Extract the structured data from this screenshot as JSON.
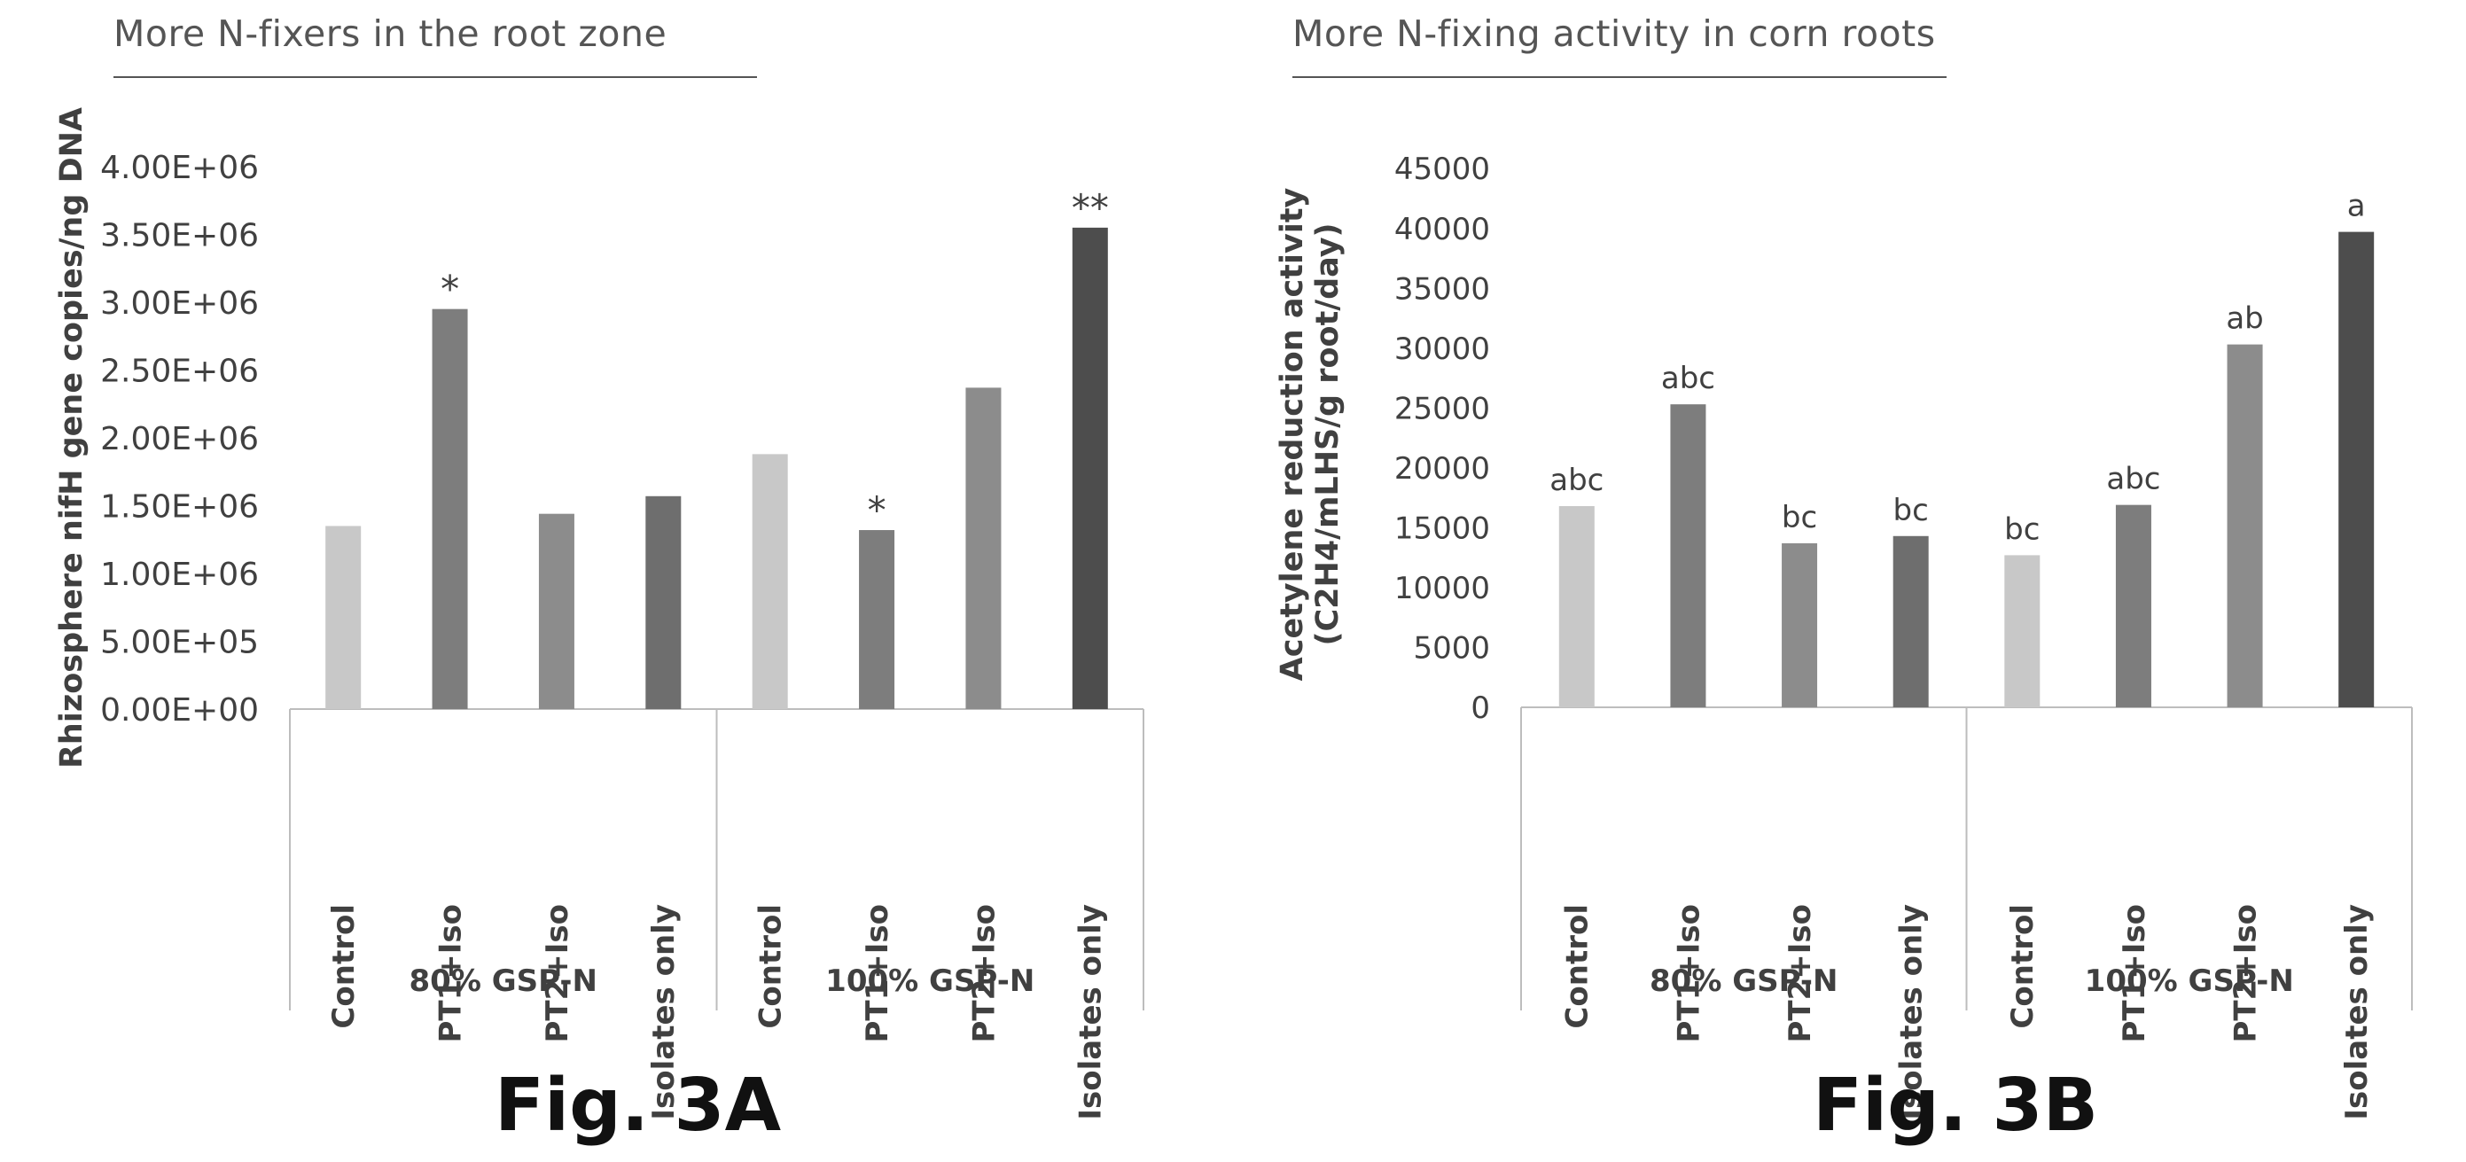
{
  "figures": [
    {
      "id": "a",
      "header": "More N-fixers in the root zone",
      "caption": "Fig. 3A"
    },
    {
      "id": "b",
      "header": "More N-fixing activity in corn roots",
      "caption": "Fig. 3B"
    }
  ],
  "chart_data": [
    {
      "type": "bar",
      "title": "More N-fixers in the root zone",
      "ylabel": "Rhizosphere nifH gene copies/ng DNA",
      "xlabel": "",
      "ylim": [
        0,
        4000000
      ],
      "yticks": [
        "0.00E+00",
        "5.00E+05",
        "1.00E+06",
        "1.50E+06",
        "2.00E+06",
        "2.50E+06",
        "3.00E+06",
        "3.50E+06",
        "4.00E+06"
      ],
      "groups": [
        "80% GSP-N",
        "100% GSP-N"
      ],
      "categories": [
        "Control",
        "PT1+Iso",
        "PT2+Iso",
        "Isolates only",
        "Control",
        "PT1+Iso",
        "PT2+Iso",
        "Isolates only"
      ],
      "values": [
        1350000,
        2950000,
        1440000,
        1570000,
        1880000,
        1320000,
        2370000,
        3550000
      ],
      "annotations": [
        "",
        "*",
        "",
        "",
        "",
        "*",
        "",
        "**"
      ],
      "colors": [
        "#c8c8c8",
        "#7d7d7d",
        "#8c8c8c",
        "#6e6e6e",
        "#c8c8c8",
        "#7d7d7d",
        "#8c8c8c",
        "#4d4d4d"
      ]
    },
    {
      "type": "bar",
      "title": "More N-fixing activity in corn roots",
      "ylabel": [
        "Acetylene reduction activity",
        "(C2H4/mLHS/g root/day)"
      ],
      "xlabel": "",
      "ylim": [
        0,
        45000
      ],
      "yticks": [
        "0",
        "5000",
        "10000",
        "15000",
        "20000",
        "25000",
        "30000",
        "35000",
        "40000",
        "45000"
      ],
      "groups": [
        "80% GSP-N",
        "100% GSP-N"
      ],
      "categories": [
        "Control",
        "PT1+Iso",
        "PT2+Iso",
        "Isolates only",
        "Control",
        "PT1+Iso",
        "PT2+Iso",
        "Isolates only"
      ],
      "values": [
        16800,
        25300,
        13700,
        14300,
        12700,
        16900,
        30300,
        39700
      ],
      "annotations": [
        "abc",
        "abc",
        "bc",
        "bc",
        "bc",
        "abc",
        "ab",
        "a"
      ],
      "colors": [
        "#c8c8c8",
        "#7d7d7d",
        "#8c8c8c",
        "#6e6e6e",
        "#c8c8c8",
        "#7d7d7d",
        "#8c8c8c",
        "#4d4d4d"
      ]
    }
  ]
}
